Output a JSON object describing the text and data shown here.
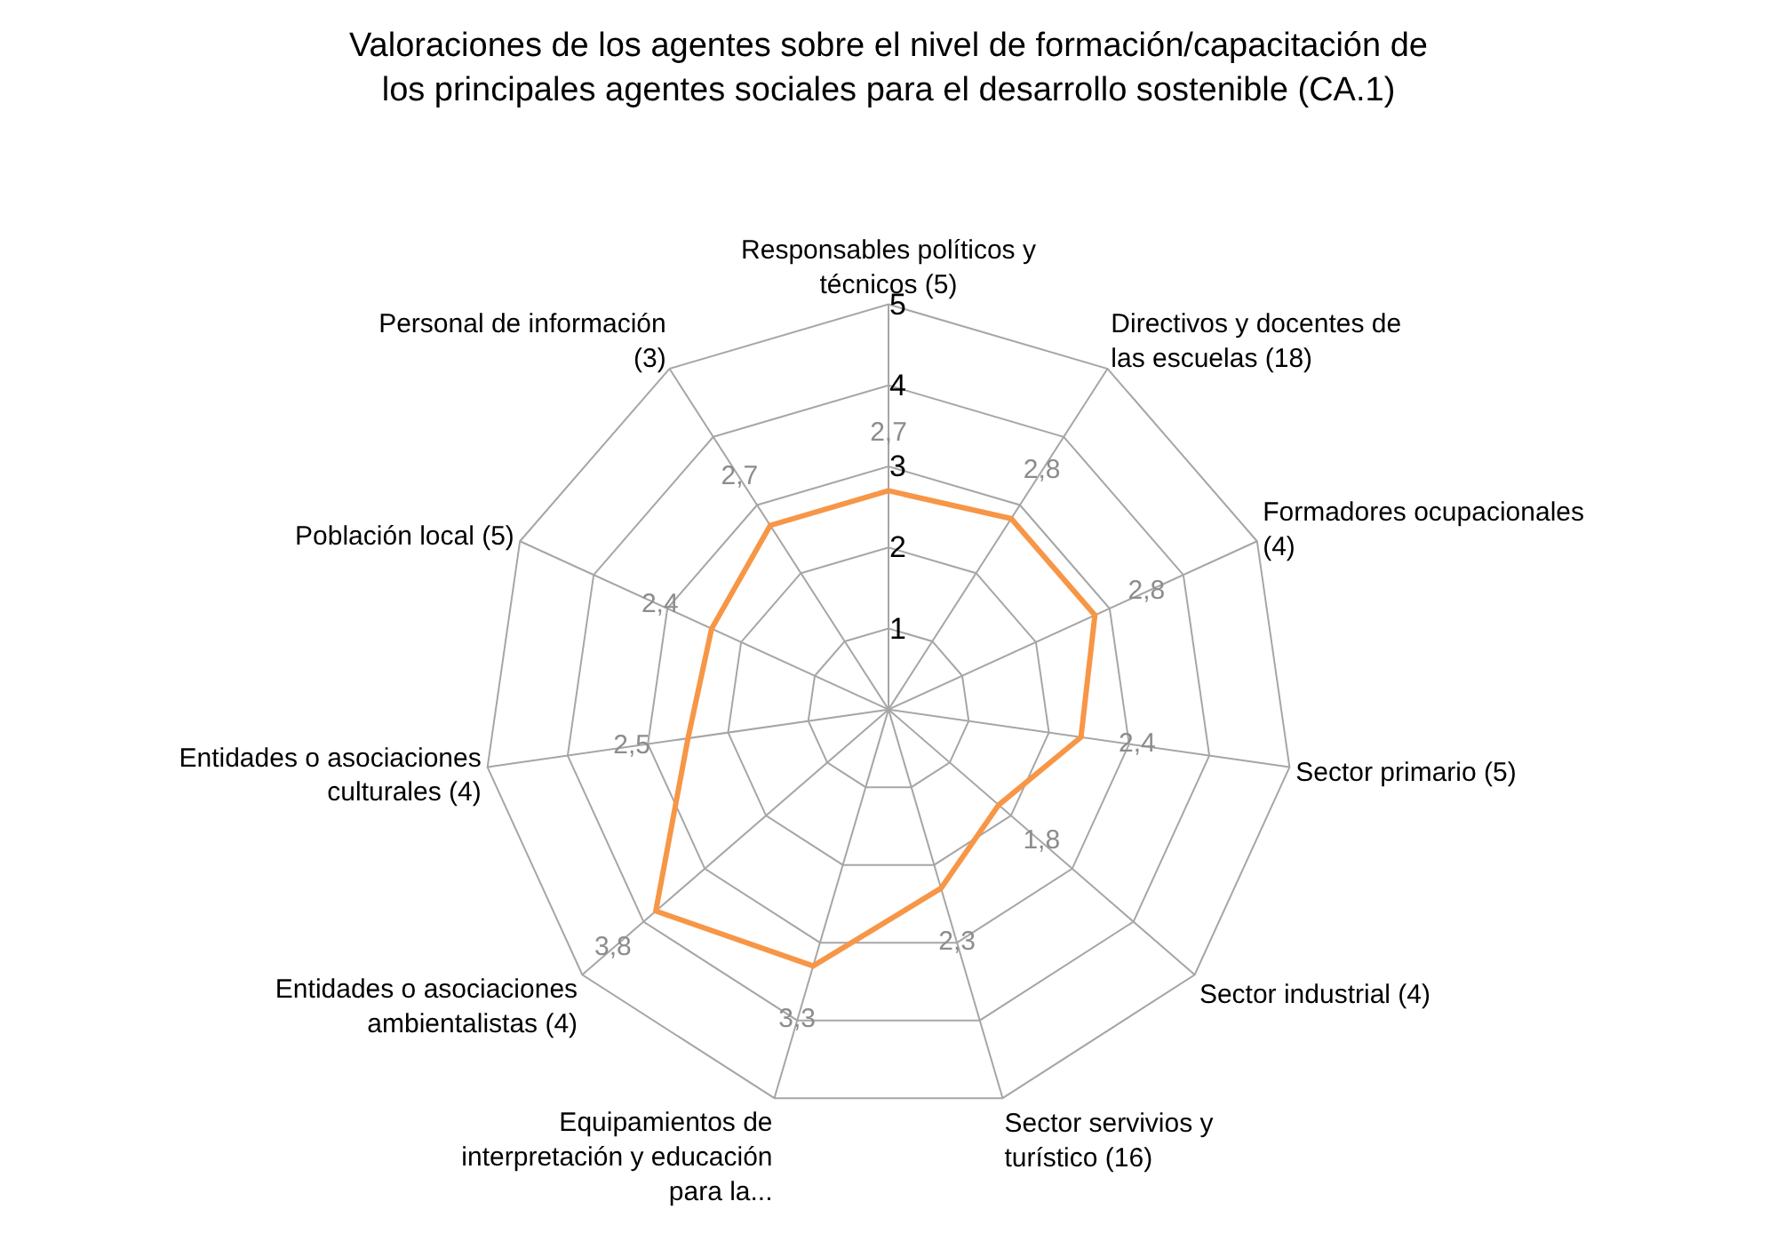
{
  "chart_data": {
    "type": "radar",
    "title": "Valoraciones de los agentes sobre el nivel de formación/capacitación de los principales agentes sociales para el desarrollo sostenible (CA.1)",
    "categories": [
      "Responsables políticos y técnicos (5)",
      "Directivos y docentes de las escuelas (18)",
      "Formadores ocupacionales (4)",
      "Sector primario (5)",
      "Sector industrial (4)",
      "Sector servivios y turístico (16)",
      "Equipamientos de interpretación y educación para la...",
      "Entidades o asociaciones ambientalistas (4)",
      "Entidades o asociaciones culturales (4)",
      "Población local (5)",
      "Personal de información (3)"
    ],
    "series": [
      {
        "color": "#f79646",
        "values": [
          2.7,
          2.8,
          2.8,
          2.4,
          1.8,
          2.3,
          3.3,
          3.8,
          2.5,
          2.4,
          2.7
        ],
        "value_labels": [
          "2,7",
          "2,8",
          "2,8",
          "2,4",
          "1,8",
          "2,3",
          "3,3",
          "3,8",
          "2,5",
          "2,4",
          "2,7"
        ]
      }
    ],
    "ylim": [
      0,
      5
    ],
    "yticks": [
      1,
      2,
      3,
      4,
      5
    ],
    "grid": true,
    "marker": "none"
  }
}
